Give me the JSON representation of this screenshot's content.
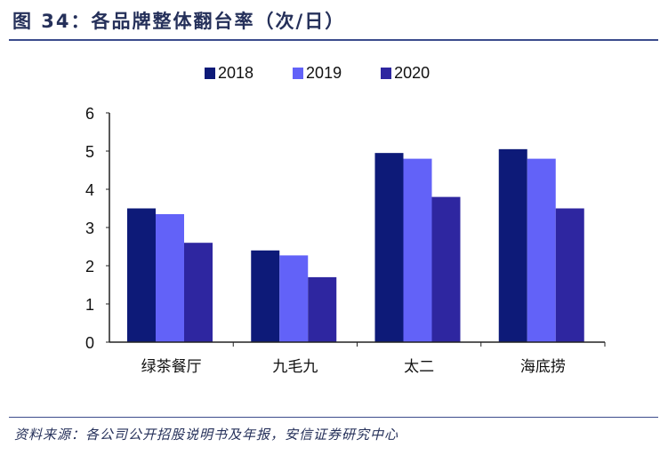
{
  "title": "图 34：各品牌整体翻台率（次/日）",
  "source": "资料来源：各公司公开招股说明书及年报，安信证券研究中心",
  "chart_data": {
    "type": "bar",
    "title": "各品牌整体翻台率（次/日）",
    "categories": [
      "绿茶餐厅",
      "九毛九",
      "太二",
      "海底捞"
    ],
    "series": [
      {
        "name": "2018",
        "color": "#0d1a78",
        "values": [
          3.5,
          2.4,
          4.95,
          5.05
        ]
      },
      {
        "name": "2019",
        "color": "#6262f8",
        "values": [
          3.35,
          2.27,
          4.8,
          4.8
        ]
      },
      {
        "name": "2020",
        "color": "#2e26a0",
        "values": [
          2.6,
          1.7,
          3.8,
          3.5
        ]
      }
    ],
    "ylim": [
      0,
      6
    ],
    "yticks": [
      "0",
      "1",
      "2",
      "3",
      "4",
      "5",
      "6"
    ],
    "legend": "top",
    "grid": false
  }
}
